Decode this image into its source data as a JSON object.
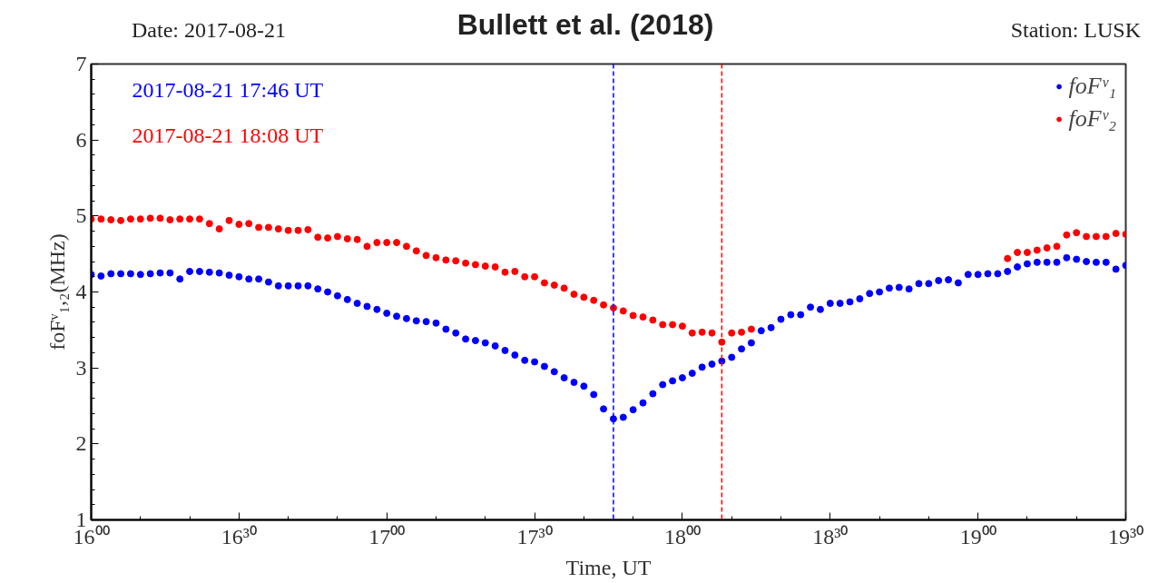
{
  "chart_data": {
    "type": "scatter",
    "title": "Bullett et al. (2018)",
    "annotations": [
      "Date: 2017-08-21",
      "Station: LUSK",
      "2017-08-21 17:46 UT",
      "2017-08-21 18:08 UT"
    ],
    "xlabel": "Time, UT",
    "ylabel": "foFᵛ₁,₂(MHz)",
    "x": [
      16,
      16.0333,
      16.0667,
      16.1,
      16.1333,
      16.1667,
      16.2,
      16.2333,
      16.2667,
      16.3,
      16.3333,
      16.3667,
      16.4,
      16.4333,
      16.4667,
      16.5,
      16.5333,
      16.5667,
      16.6,
      16.6333,
      16.6667,
      16.7,
      16.7333,
      16.7667,
      16.8,
      16.8333,
      16.8667,
      16.9,
      16.9333,
      16.9667,
      17,
      17.0333,
      17.0667,
      17.1,
      17.1333,
      17.1667,
      17.2,
      17.2333,
      17.2667,
      17.3,
      17.3333,
      17.3667,
      17.4,
      17.4333,
      17.4667,
      17.5,
      17.5333,
      17.5667,
      17.6,
      17.6333,
      17.6667,
      17.7,
      17.7333,
      17.7667,
      17.8,
      17.8333,
      17.8667,
      17.9,
      17.9333,
      17.9667,
      18,
      18.0333,
      18.0667,
      18.1,
      18.1333,
      18.1667,
      18.2,
      18.2333,
      18.2667,
      18.3,
      18.3333,
      18.3667,
      18.4,
      18.4333,
      18.4667,
      18.5,
      18.5333,
      18.5667,
      18.6,
      18.6333,
      18.6667,
      18.7,
      18.7333,
      18.7667,
      18.8,
      18.8333,
      18.8667,
      18.9,
      18.9333,
      18.9667,
      19,
      19.0333,
      19.0667,
      19.1,
      19.1333,
      19.1667,
      19.2,
      19.2333,
      19.2667,
      19.3,
      19.3333,
      19.3667,
      19.4,
      19.4333,
      19.4667,
      19.5
    ],
    "series": [
      {
        "name": "foFᵛ₁",
        "color": "#0000ff",
        "values": [
          4.23,
          4.21,
          4.24,
          4.24,
          4.24,
          4.23,
          4.24,
          4.25,
          4.25,
          4.17,
          4.27,
          4.27,
          4.26,
          4.25,
          4.22,
          4.2,
          4.17,
          4.17,
          4.13,
          4.08,
          4.08,
          4.08,
          4.08,
          4.04,
          4.0,
          3.95,
          3.9,
          3.85,
          3.81,
          3.77,
          3.72,
          3.68,
          3.65,
          3.62,
          3.61,
          3.59,
          3.51,
          3.46,
          3.38,
          3.36,
          3.33,
          3.29,
          3.23,
          3.17,
          3.1,
          3.08,
          3.02,
          2.95,
          2.87,
          2.81,
          2.76,
          2.65,
          2.46,
          2.33,
          2.35,
          2.45,
          2.54,
          2.66,
          2.78,
          2.83,
          2.87,
          2.93,
          3.01,
          3.05,
          3.09,
          3.14,
          3.25,
          3.33,
          3.49,
          3.53,
          3.64,
          3.7,
          3.7,
          3.8,
          3.77,
          3.85,
          3.85,
          3.87,
          3.91,
          3.98,
          4.0,
          4.05,
          4.06,
          4.04,
          4.11,
          4.11,
          4.15,
          4.16,
          4.12,
          4.23,
          4.23,
          4.24,
          4.24,
          4.27,
          4.33,
          4.37,
          4.39,
          4.39,
          4.39,
          4.45,
          4.43,
          4.4,
          4.39,
          4.39,
          4.3,
          4.35
        ]
      },
      {
        "name": "foFᵛ₂",
        "color": "#ff0000",
        "values": [
          4.96,
          4.96,
          4.95,
          4.94,
          4.96,
          4.96,
          4.97,
          4.97,
          4.95,
          4.96,
          4.96,
          4.96,
          4.9,
          4.83,
          4.94,
          4.89,
          4.9,
          4.85,
          4.85,
          4.83,
          4.81,
          4.81,
          4.82,
          4.72,
          4.71,
          4.73,
          4.7,
          4.69,
          4.6,
          4.65,
          4.65,
          4.65,
          4.6,
          4.54,
          4.48,
          4.45,
          4.42,
          4.41,
          4.38,
          4.36,
          4.34,
          4.33,
          4.26,
          4.27,
          4.2,
          4.2,
          4.12,
          4.09,
          4.05,
          3.97,
          3.93,
          3.89,
          3.83,
          3.79,
          3.75,
          3.69,
          3.67,
          3.63,
          3.57,
          3.57,
          3.55,
          3.46,
          3.47,
          3.46,
          3.34,
          3.46,
          3.47,
          3.51,
          null,
          null,
          null,
          null,
          null,
          null,
          null,
          null,
          null,
          null,
          null,
          null,
          null,
          null,
          null,
          null,
          null,
          null,
          null,
          null,
          null,
          null,
          null,
          null,
          null,
          4.44,
          4.52,
          4.52,
          4.55,
          4.58,
          4.6,
          4.75,
          4.78,
          4.73,
          4.73,
          4.73,
          4.77,
          4.76
        ]
      }
    ],
    "ref_lines": [
      {
        "axis": "x",
        "value": 17.766667,
        "color": "#0000ff",
        "line_style": "dashed"
      },
      {
        "axis": "x",
        "value": 18.133333,
        "color": "#ff0000",
        "line_style": "dashed"
      }
    ],
    "xlim": [
      16,
      19.5
    ],
    "ylim": [
      1,
      7
    ],
    "xticks": [
      {
        "value": 16,
        "label": "16⁰⁰"
      },
      {
        "value": 16.5,
        "label": "16³⁰"
      },
      {
        "value": 17,
        "label": "17⁰⁰"
      },
      {
        "value": 17.5,
        "label": "17³⁰"
      },
      {
        "value": 18,
        "label": "18⁰⁰"
      },
      {
        "value": 18.5,
        "label": "18³⁰"
      },
      {
        "value": 19,
        "label": "19⁰⁰"
      },
      {
        "value": 19.5,
        "label": "19³⁰"
      }
    ],
    "yticks": [
      1,
      2,
      3,
      4,
      5,
      6,
      7
    ],
    "marker": "circle",
    "legend": "top right",
    "grid": false
  }
}
